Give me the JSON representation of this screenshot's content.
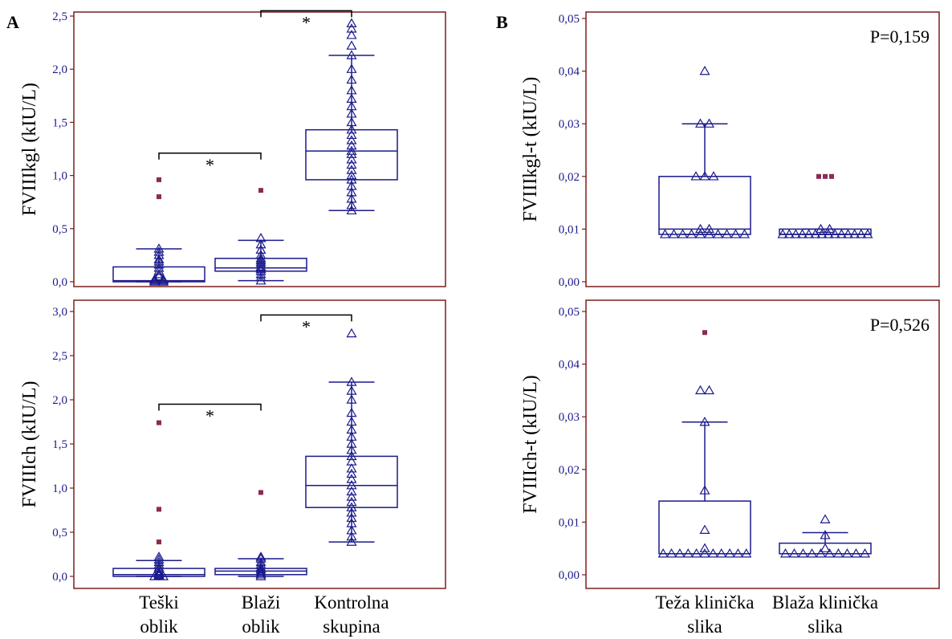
{
  "panels": {
    "a": "A",
    "b": "B"
  },
  "colors": {
    "frame": "#7a1f1f",
    "series": "#1a1a8c",
    "outlier": "#8b2a55",
    "tick_text": "#1a1a8c"
  },
  "chart_data": [
    {
      "type": "box",
      "ylabel": "FVIIIkgl (kIU/L)",
      "ylim": [
        0,
        2.5
      ],
      "yticks": [
        "0,0",
        "0,5",
        "1,0",
        "1,5",
        "2,0",
        "2,5"
      ],
      "categories": [],
      "groups": [
        {
          "q1": 0.0,
          "median": 0.01,
          "q3": 0.14,
          "whisker_low": 0.0,
          "whisker_high": 0.31,
          "points": [
            0.0,
            0.0,
            0.01,
            0.01,
            0.02,
            0.02,
            0.05,
            0.07,
            0.1,
            0.13,
            0.16,
            0.19,
            0.21,
            0.25,
            0.28,
            0.31
          ],
          "outliers": [
            0.8,
            0.96
          ]
        },
        {
          "q1": 0.1,
          "median": 0.13,
          "q3": 0.22,
          "whisker_low": 0.01,
          "whisker_high": 0.39,
          "points": [
            0.01,
            0.04,
            0.07,
            0.1,
            0.12,
            0.14,
            0.16,
            0.18,
            0.2,
            0.22,
            0.25,
            0.3,
            0.35,
            0.41
          ],
          "outliers": [
            0.86
          ]
        },
        {
          "q1": 0.96,
          "median": 1.23,
          "q3": 1.43,
          "whisker_low": 0.67,
          "whisker_high": 2.13,
          "points": [
            0.67,
            0.72,
            0.78,
            0.84,
            0.9,
            0.96,
            1.0,
            1.05,
            1.1,
            1.15,
            1.2,
            1.23,
            1.28,
            1.33,
            1.38,
            1.43,
            1.5,
            1.58,
            1.65,
            1.72,
            1.8,
            1.9,
            2.0,
            2.13,
            2.22,
            2.32,
            2.38,
            2.43
          ],
          "outliers": []
        }
      ],
      "significance": [
        {
          "from": 0,
          "to": 1,
          "at": 1.21,
          "label": "*"
        },
        {
          "from": 1,
          "to": 2,
          "at": 2.55,
          "label": "*"
        }
      ]
    },
    {
      "type": "box",
      "ylabel": "FVIIIch (kIU/L)",
      "ylim": [
        0,
        3.0
      ],
      "yticks": [
        "0,0",
        "0,5",
        "1,0",
        "1,5",
        "2,0",
        "2,5",
        "3,0"
      ],
      "categories": [
        "Teški oblik",
        "Blaži oblik",
        "Kontrolna skupina"
      ],
      "groups": [
        {
          "q1": 0.0,
          "median": 0.02,
          "q3": 0.09,
          "whisker_low": 0.0,
          "whisker_high": 0.18,
          "points": [
            0.0,
            0.0,
            0.01,
            0.02,
            0.03,
            0.05,
            0.08,
            0.1,
            0.13,
            0.16,
            0.19,
            0.22
          ],
          "outliers": [
            0.39,
            0.76,
            1.74
          ]
        },
        {
          "q1": 0.02,
          "median": 0.06,
          "q3": 0.09,
          "whisker_low": 0.0,
          "whisker_high": 0.2,
          "points": [
            0.0,
            0.02,
            0.04,
            0.06,
            0.08,
            0.1,
            0.13,
            0.16,
            0.2,
            0.22
          ],
          "outliers": [
            0.95
          ]
        },
        {
          "q1": 0.78,
          "median": 1.03,
          "q3": 1.36,
          "whisker_low": 0.39,
          "whisker_high": 2.2,
          "points": [
            0.39,
            0.45,
            0.52,
            0.6,
            0.66,
            0.72,
            0.78,
            0.84,
            0.9,
            0.96,
            1.03,
            1.1,
            1.16,
            1.22,
            1.3,
            1.36,
            1.43,
            1.5,
            1.58,
            1.66,
            1.75,
            1.85,
            2.0,
            2.1,
            2.2,
            2.75
          ],
          "outliers": []
        }
      ],
      "significance": [
        {
          "from": 0,
          "to": 1,
          "at": 1.95,
          "label": "*"
        },
        {
          "from": 1,
          "to": 2,
          "at": 2.96,
          "label": "*"
        }
      ]
    },
    {
      "type": "box",
      "ylabel": "FVIIIkgl-t (kIU/L)",
      "ylim": [
        0,
        0.05
      ],
      "yticks": [
        "0,00",
        "0,01",
        "0,02",
        "0,03",
        "0,04",
        "0,05"
      ],
      "annotation": "P=0,159",
      "categories": [],
      "groups": [
        {
          "q1": 0.009,
          "median": 0.01,
          "q3": 0.02,
          "whisker_low": 0.009,
          "whisker_high": 0.03,
          "points": [
            0.009,
            0.009,
            0.009,
            0.009,
            0.009,
            0.009,
            0.009,
            0.009,
            0.009,
            0.009,
            0.01,
            0.01,
            0.02,
            0.02,
            0.02,
            0.03,
            0.03,
            0.04
          ],
          "outliers": []
        },
        {
          "q1": 0.009,
          "median": 0.009,
          "q3": 0.01,
          "whisker_low": 0.009,
          "whisker_high": 0.01,
          "points": [
            0.009,
            0.009,
            0.009,
            0.009,
            0.009,
            0.009,
            0.009,
            0.009,
            0.009,
            0.009,
            0.009,
            0.009,
            0.009,
            0.009,
            0.01,
            0.01
          ],
          "outliers": [
            0.02,
            0.02,
            0.02
          ]
        }
      ]
    },
    {
      "type": "box",
      "ylabel": "FVIIIch-t (kIU/L)",
      "ylim": [
        0,
        0.05
      ],
      "yticks": [
        "0,00",
        "0,01",
        "0,02",
        "0,03",
        "0,04",
        "0,05"
      ],
      "annotation": "P=0,526",
      "categories": [
        "Teža klinička slika",
        "Blaža klinička slika"
      ],
      "groups": [
        {
          "q1": 0.004,
          "median": 0.004,
          "q3": 0.014,
          "whisker_low": 0.004,
          "whisker_high": 0.029,
          "points": [
            0.004,
            0.004,
            0.004,
            0.004,
            0.004,
            0.004,
            0.004,
            0.004,
            0.004,
            0.004,
            0.004,
            0.005,
            0.0085,
            0.016,
            0.029,
            0.035,
            0.035
          ],
          "outliers": [
            0.046
          ]
        },
        {
          "q1": 0.004,
          "median": 0.004,
          "q3": 0.006,
          "whisker_low": 0.004,
          "whisker_high": 0.008,
          "points": [
            0.004,
            0.004,
            0.004,
            0.004,
            0.004,
            0.004,
            0.004,
            0.004,
            0.004,
            0.004,
            0.005,
            0.0075,
            0.0105
          ],
          "outliers": []
        }
      ]
    }
  ]
}
